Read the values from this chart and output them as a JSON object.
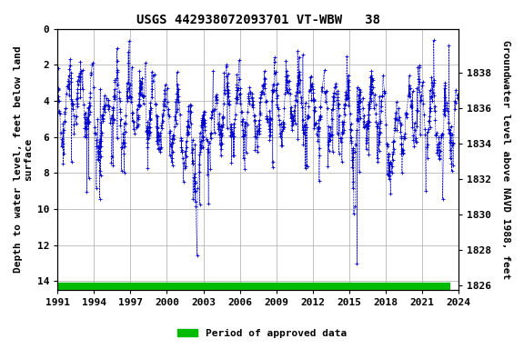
{
  "title": "USGS 442938072093701 VT-WBW   38",
  "ylabel_left": "Depth to water level, feet below land\nsurface",
  "ylabel_right": "Groundwater level above NAVD 1988, feet",
  "xlim": [
    1991,
    2024
  ],
  "ylim_left": [
    14.5,
    0
  ],
  "ylim_right": [
    1825.75,
    1840.5
  ],
  "xticks": [
    1991,
    1994,
    1997,
    2000,
    2003,
    2006,
    2009,
    2012,
    2015,
    2018,
    2021,
    2024
  ],
  "yticks_left": [
    0,
    2,
    4,
    6,
    8,
    10,
    12,
    14
  ],
  "yticks_right": [
    1826,
    1828,
    1830,
    1832,
    1834,
    1836,
    1838
  ],
  "data_color": "#0000CC",
  "bar_color": "#00BB00",
  "bar_y": 14.3,
  "legend_label": "Period of approved data",
  "background_color": "#ffffff",
  "plot_bg_color": "#ffffff",
  "grid_color": "#aaaaaa",
  "title_fontsize": 10,
  "label_fontsize": 8,
  "tick_fontsize": 8,
  "seed": 42
}
